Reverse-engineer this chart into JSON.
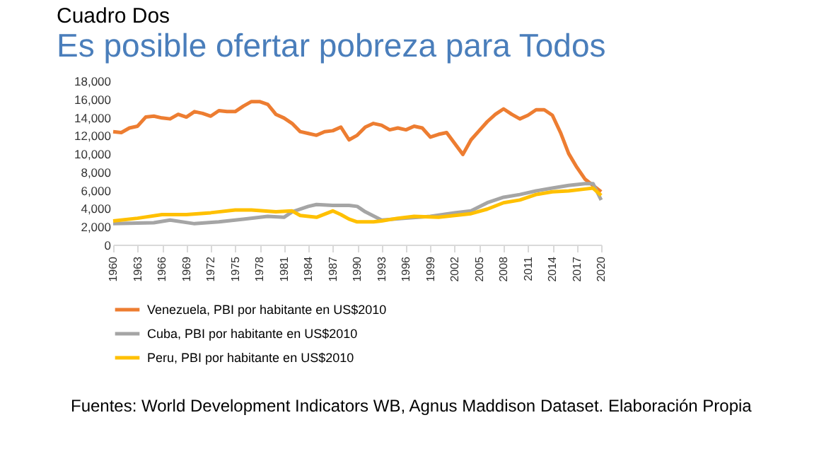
{
  "chart_data": {
    "type": "line",
    "title": "Cuadro Dos",
    "subtitle": "Es posible ofertar pobreza para Todos",
    "annotations": [
      "Fuentes: World Development Indicators WB, Agnus Maddison Dataset. Elaboración Propia"
    ],
    "xlim": [
      1960,
      2020
    ],
    "xticks": [
      1960,
      1963,
      1966,
      1969,
      1972,
      1975,
      1978,
      1981,
      1984,
      1987,
      1990,
      1993,
      1996,
      1999,
      2002,
      2005,
      2008,
      2011,
      2014,
      2017,
      2020
    ],
    "ylim": [
      0,
      18000
    ],
    "yticks": [
      0,
      {
        "value": 2000,
        "label": "2,000"
      },
      {
        "value": 4000,
        "label": "4,000"
      },
      {
        "value": 6000,
        "label": "6,000"
      },
      {
        "value": 8000,
        "label": "8,000"
      },
      {
        "value": 10000,
        "label": "10,000"
      },
      {
        "value": 12000,
        "label": "12,000"
      },
      {
        "value": 14000,
        "label": "14,000"
      },
      {
        "value": 16000,
        "label": "16,000"
      },
      {
        "value": 18000,
        "label": "18,000"
      }
    ],
    "grid": false,
    "legend": "bottom",
    "marker": "none",
    "line_style": "solid",
    "series": [
      {
        "name": "Venezuela, PBI por habitante en US$2010",
        "color": "#ed7d31",
        "x": [
          1960,
          1961,
          1962,
          1963,
          1964,
          1965,
          1966,
          1967,
          1968,
          1969,
          1970,
          1971,
          1972,
          1973,
          1974,
          1975,
          1976,
          1977,
          1978,
          1979,
          1980,
          1981,
          1982,
          1983,
          1984,
          1985,
          1986,
          1987,
          1988,
          1989,
          1990,
          1991,
          1992,
          1993,
          1994,
          1995,
          1996,
          1997,
          1998,
          1999,
          2000,
          2001,
          2002,
          2003,
          2004,
          2005,
          2006,
          2007,
          2008,
          2009,
          2010,
          2011,
          2012,
          2013,
          2014,
          2015,
          2016,
          2017,
          2018,
          2019,
          2020
        ],
        "values": [
          12400,
          12300,
          12800,
          13000,
          14000,
          14100,
          13900,
          13800,
          14300,
          14000,
          14600,
          14400,
          14100,
          14700,
          14600,
          14600,
          15200,
          15700,
          15700,
          15400,
          14300,
          13900,
          13300,
          12400,
          12200,
          12000,
          12400,
          12500,
          12900,
          11500,
          12000,
          12900,
          13300,
          13100,
          12600,
          12800,
          12600,
          13000,
          12800,
          11800,
          12100,
          12300,
          11100,
          9900,
          11500,
          12500,
          13500,
          14300,
          14900,
          14300,
          13800,
          14200,
          14800,
          14800,
          14200,
          12300,
          10000,
          8500,
          7200,
          6500,
          5800
        ]
      },
      {
        "name": "Cuba, PBI por habitante en US$2010",
        "color": "#a5a5a5",
        "x": [
          1960,
          1965,
          1967,
          1970,
          1973,
          1976,
          1979,
          1981,
          1982,
          1984,
          1985,
          1987,
          1989,
          1990,
          1991,
          1993,
          1996,
          1999,
          2002,
          2004,
          2006,
          2008,
          2010,
          2012,
          2014,
          2016,
          2018,
          2019,
          2020
        ],
        "values": [
          2300,
          2400,
          2700,
          2300,
          2500,
          2800,
          3100,
          3000,
          3600,
          4200,
          4400,
          4300,
          4300,
          4200,
          3600,
          2700,
          2900,
          3100,
          3500,
          3700,
          4600,
          5200,
          5500,
          5900,
          6200,
          6500,
          6700,
          6700,
          4900
        ]
      },
      {
        "name": "Peru, PBI por habitante en US$2010",
        "color": "#ffc000",
        "x": [
          1960,
          1963,
          1966,
          1969,
          1972,
          1975,
          1977,
          1980,
          1982,
          1983,
          1985,
          1987,
          1988,
          1989,
          1990,
          1992,
          1993,
          1995,
          1997,
          2000,
          2002,
          2004,
          2006,
          2008,
          2010,
          2012,
          2014,
          2016,
          2018,
          2019,
          2020
        ],
        "values": [
          2600,
          2900,
          3300,
          3300,
          3500,
          3800,
          3800,
          3600,
          3700,
          3200,
          3000,
          3700,
          3300,
          2800,
          2500,
          2500,
          2600,
          2900,
          3100,
          3000,
          3200,
          3400,
          3900,
          4600,
          4900,
          5500,
          5800,
          5900,
          6100,
          6200,
          5400
        ]
      }
    ]
  }
}
